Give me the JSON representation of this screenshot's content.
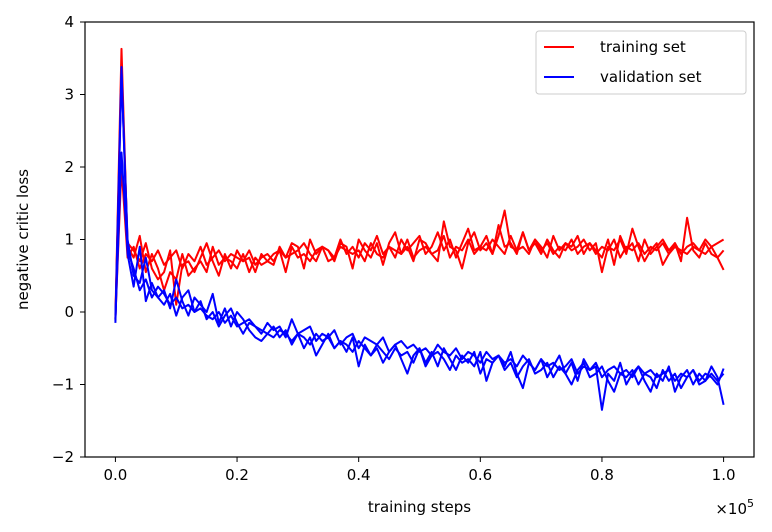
{
  "chart_data": {
    "type": "line",
    "title": "",
    "xlabel": "training steps",
    "ylabel": "negative critic loss",
    "x_scale_label": "×10",
    "x_scale_exponent": "5",
    "xlim": [
      -0.05,
      1.05
    ],
    "ylim": [
      -2,
      4
    ],
    "xticks": [
      0.0,
      0.2,
      0.4,
      0.6,
      0.8,
      1.0
    ],
    "xtick_labels": [
      "0.0",
      "0.2",
      "0.4",
      "0.6",
      "0.8",
      "1.0"
    ],
    "yticks": [
      -2,
      -1,
      0,
      1,
      2,
      3,
      4
    ],
    "ytick_labels": [
      "−2",
      "−1",
      "0",
      "1",
      "2",
      "3",
      "4"
    ],
    "grid": false,
    "legend_position": "top-right",
    "legend": [
      {
        "label": "training set",
        "color": "#ff0000"
      },
      {
        "label": "validation set",
        "color": "#0000ff"
      }
    ],
    "x": [
      0.0,
      0.01,
      0.02,
      0.03,
      0.04,
      0.05,
      0.06,
      0.07,
      0.08,
      0.09,
      0.1,
      0.11,
      0.12,
      0.13,
      0.14,
      0.15,
      0.16,
      0.17,
      0.18,
      0.19,
      0.2,
      0.21,
      0.22,
      0.23,
      0.24,
      0.25,
      0.26,
      0.27,
      0.28,
      0.29,
      0.3,
      0.31,
      0.32,
      0.33,
      0.34,
      0.35,
      0.36,
      0.37,
      0.38,
      0.39,
      0.4,
      0.41,
      0.42,
      0.43,
      0.44,
      0.45,
      0.46,
      0.47,
      0.48,
      0.49,
      0.5,
      0.51,
      0.52,
      0.53,
      0.54,
      0.55,
      0.56,
      0.57,
      0.58,
      0.59,
      0.6,
      0.61,
      0.62,
      0.63,
      0.64,
      0.65,
      0.66,
      0.67,
      0.68,
      0.69,
      0.7,
      0.71,
      0.72,
      0.73,
      0.74,
      0.75,
      0.76,
      0.77,
      0.78,
      0.79,
      0.8,
      0.81,
      0.82,
      0.83,
      0.84,
      0.85,
      0.86,
      0.87,
      0.88,
      0.89,
      0.9,
      0.91,
      0.92,
      0.93,
      0.94,
      0.95,
      0.96,
      0.97,
      0.98,
      0.99,
      1.0
    ],
    "series": [
      {
        "group": "training set",
        "color": "#ff0000",
        "values": [
          -0.05,
          3.63,
          0.9,
          0.75,
          1.05,
          0.55,
          0.8,
          0.6,
          0.3,
          0.55,
          0.45,
          0.8,
          0.5,
          0.6,
          0.7,
          0.55,
          0.9,
          0.65,
          0.75,
          0.7,
          0.6,
          0.8,
          0.55,
          0.75,
          0.65,
          0.7,
          0.8,
          0.85,
          0.75,
          0.95,
          0.9,
          0.6,
          1.0,
          0.8,
          0.9,
          0.85,
          0.7,
          0.95,
          0.9,
          0.6,
          1.0,
          0.85,
          0.75,
          0.95,
          0.65,
          0.95,
          1.1,
          0.8,
          0.9,
          0.7,
          1.0,
          0.95,
          0.8,
          0.7,
          1.25,
          0.9,
          0.85,
          0.6,
          0.95,
          1.1,
          0.85,
          0.95,
          0.8,
          1.05,
          1.4,
          0.9,
          0.85,
          1.1,
          0.85,
          0.95,
          0.8,
          1.0,
          0.85,
          0.75,
          0.95,
          0.85,
          0.9,
          1.0,
          0.85,
          0.95,
          0.55,
          0.9,
          0.85,
          1.0,
          0.8,
          1.15,
          0.9,
          0.7,
          0.85,
          0.95,
          0.65,
          0.8,
          0.95,
          0.7,
          1.3,
          0.85,
          0.75,
          0.95,
          0.8,
          0.75,
          0.58
        ]
      },
      {
        "group": "training set",
        "color": "#ff0000",
        "values": [
          -0.1,
          3.4,
          0.95,
          0.85,
          0.7,
          0.95,
          0.6,
          0.45,
          0.55,
          0.85,
          0.1,
          0.65,
          0.7,
          0.55,
          0.75,
          0.95,
          0.7,
          0.5,
          0.8,
          0.6,
          0.85,
          0.7,
          0.75,
          0.55,
          0.8,
          0.7,
          0.65,
          0.9,
          0.75,
          0.8,
          0.85,
          0.95,
          0.8,
          0.7,
          0.9,
          0.85,
          0.75,
          1.0,
          0.8,
          0.9,
          0.75,
          0.95,
          0.85,
          1.05,
          0.8,
          0.9,
          0.75,
          1.0,
          0.85,
          0.95,
          1.05,
          0.8,
          0.9,
          1.1,
          0.85,
          1.0,
          0.75,
          0.95,
          1.15,
          0.85,
          0.9,
          1.05,
          0.8,
          1.2,
          0.9,
          0.95,
          0.8,
          1.1,
          0.85,
          1.0,
          0.9,
          0.75,
          1.05,
          0.85,
          0.95,
          0.9,
          1.05,
          0.8,
          0.95,
          0.85,
          0.75,
          1.0,
          0.65,
          1.05,
          0.85,
          0.95,
          0.7,
          1.0,
          0.8,
          0.9,
          1.0,
          0.85,
          0.95,
          0.8,
          0.9,
          0.95,
          0.85,
          1.0,
          0.9,
          0.95,
          1.0
        ]
      },
      {
        "group": "training set",
        "color": "#ff0000",
        "values": [
          -0.08,
          2.0,
          0.75,
          0.9,
          0.6,
          0.8,
          0.7,
          0.85,
          0.65,
          0.75,
          0.85,
          0.6,
          0.8,
          0.7,
          0.9,
          0.65,
          0.75,
          0.85,
          0.7,
          0.8,
          0.75,
          0.7,
          0.85,
          0.65,
          0.75,
          0.8,
          0.7,
          0.85,
          0.55,
          0.9,
          0.75,
          0.8,
          0.7,
          0.85,
          0.9,
          0.7,
          0.75,
          0.9,
          0.85,
          0.8,
          0.85,
          0.7,
          0.95,
          0.8,
          0.75,
          0.9,
          0.85,
          0.8,
          1.0,
          0.75,
          0.85,
          0.9,
          0.8,
          0.85,
          1.05,
          0.75,
          0.9,
          0.85,
          1.0,
          0.8,
          0.9,
          0.85,
          1.0,
          0.9,
          0.8,
          1.05,
          0.85,
          0.9,
          0.8,
          1.0,
          0.85,
          0.95,
          0.8,
          0.9,
          0.85,
          1.0,
          0.8,
          0.9,
          0.95,
          0.8,
          0.9,
          0.85,
          1.0,
          0.75,
          0.9,
          0.85,
          0.95,
          0.8,
          0.9,
          0.85,
          0.95,
          0.8,
          0.9,
          0.85,
          0.8,
          0.9,
          0.85,
          0.8,
          0.9,
          0.75,
          0.85
        ]
      },
      {
        "group": "validation set",
        "color": "#0000ff",
        "values": [
          -0.15,
          3.38,
          0.8,
          0.35,
          0.9,
          0.15,
          0.4,
          0.2,
          0.3,
          0.05,
          0.45,
          0.15,
          -0.05,
          0.2,
          0.1,
          0.0,
          0.25,
          -0.15,
          0.05,
          -0.2,
          0.0,
          -0.1,
          -0.25,
          -0.35,
          -0.4,
          -0.3,
          -0.2,
          -0.35,
          -0.25,
          -0.45,
          -0.3,
          -0.5,
          -0.35,
          -0.6,
          -0.45,
          -0.3,
          -0.5,
          -0.4,
          -0.55,
          -0.35,
          -0.75,
          -0.45,
          -0.6,
          -0.5,
          -0.7,
          -0.55,
          -0.45,
          -0.65,
          -0.85,
          -0.6,
          -0.5,
          -0.7,
          -0.55,
          -0.75,
          -0.5,
          -0.65,
          -0.8,
          -0.6,
          -0.7,
          -0.55,
          -0.85,
          -0.65,
          -0.7,
          -0.6,
          -0.75,
          -0.55,
          -0.85,
          -1.05,
          -0.7,
          -0.8,
          -0.65,
          -0.9,
          -0.75,
          -0.6,
          -0.85,
          -0.7,
          -0.95,
          -0.65,
          -0.8,
          -0.75,
          -1.35,
          -0.85,
          -0.95,
          -0.7,
          -1.0,
          -0.85,
          -0.75,
          -0.95,
          -1.1,
          -0.85,
          -0.95,
          -0.75,
          -1.1,
          -0.9,
          -0.8,
          -1.0,
          -0.85,
          -0.95,
          -0.75,
          -0.9,
          -1.28
        ]
      },
      {
        "group": "validation set",
        "color": "#0000ff",
        "values": [
          -0.12,
          3.3,
          1.0,
          0.5,
          0.4,
          0.75,
          0.3,
          0.2,
          0.1,
          0.25,
          -0.05,
          0.2,
          0.3,
          0.0,
          0.15,
          -0.1,
          0.0,
          -0.2,
          -0.05,
          0.05,
          -0.15,
          -0.3,
          -0.15,
          -0.2,
          -0.25,
          -0.3,
          -0.35,
          -0.25,
          -0.3,
          -0.4,
          -0.3,
          -0.35,
          -0.45,
          -0.3,
          -0.4,
          -0.35,
          -0.5,
          -0.4,
          -0.45,
          -0.55,
          -0.4,
          -0.5,
          -0.6,
          -0.45,
          -0.55,
          -0.65,
          -0.5,
          -0.6,
          -0.55,
          -0.7,
          -0.5,
          -0.75,
          -0.6,
          -0.55,
          -0.65,
          -0.8,
          -0.6,
          -0.7,
          -0.65,
          -0.75,
          -0.55,
          -0.95,
          -0.7,
          -0.6,
          -0.8,
          -0.7,
          -0.9,
          -0.75,
          -0.65,
          -0.85,
          -0.8,
          -0.7,
          -0.9,
          -0.75,
          -0.85,
          -1.0,
          -0.8,
          -0.7,
          -0.9,
          -0.85,
          -0.75,
          -0.95,
          -1.1,
          -0.85,
          -0.9,
          -0.8,
          -1.0,
          -0.85,
          -0.9,
          -1.05,
          -0.8,
          -0.95,
          -0.85,
          -1.05,
          -0.9,
          -0.8,
          -1.0,
          -0.95,
          -0.85,
          -0.95,
          -0.85
        ]
      },
      {
        "group": "validation set",
        "color": "#0000ff",
        "values": [
          -0.1,
          2.2,
          0.85,
          0.6,
          0.3,
          0.45,
          0.2,
          0.35,
          0.25,
          0.1,
          0.2,
          0.05,
          0.1,
          0.0,
          0.05,
          -0.05,
          -0.1,
          0.0,
          -0.15,
          -0.05,
          -0.2,
          -0.15,
          -0.1,
          -0.2,
          -0.3,
          -0.15,
          -0.25,
          -0.2,
          -0.35,
          -0.1,
          -0.3,
          -0.25,
          -0.2,
          -0.4,
          -0.3,
          -0.35,
          -0.25,
          -0.45,
          -0.35,
          -0.3,
          -0.5,
          -0.35,
          -0.4,
          -0.45,
          -0.35,
          -0.55,
          -0.45,
          -0.4,
          -0.5,
          -0.45,
          -0.55,
          -0.5,
          -0.6,
          -0.45,
          -0.55,
          -0.6,
          -0.5,
          -0.65,
          -0.55,
          -0.6,
          -0.7,
          -0.55,
          -0.65,
          -0.6,
          -0.7,
          -0.65,
          -0.75,
          -0.6,
          -0.7,
          -0.8,
          -0.65,
          -0.75,
          -0.7,
          -0.8,
          -0.75,
          -0.65,
          -0.85,
          -0.75,
          -0.8,
          -0.7,
          -0.9,
          -0.8,
          -0.75,
          -0.85,
          -0.8,
          -0.9,
          -0.75,
          -0.85,
          -0.8,
          -0.9,
          -0.85,
          -0.8,
          -0.95,
          -0.85,
          -0.9,
          -0.8,
          -0.95,
          -0.85,
          -0.9,
          -1.0,
          -0.78
        ]
      }
    ]
  }
}
